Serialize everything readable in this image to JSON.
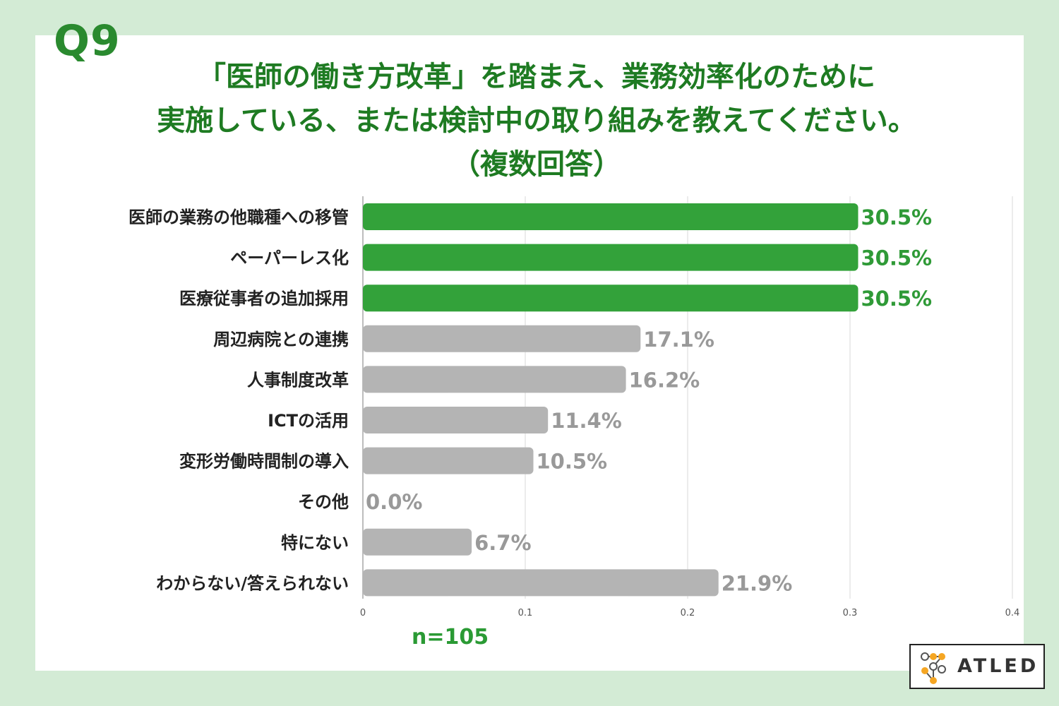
{
  "header": {
    "qnum": "Q9",
    "title_line1": "「医師の働き方改革」を踏まえ、業務効率化のために",
    "title_line2": "実施している、または検討中の取り組みを教えてください。",
    "title_line3": "（複数回答）"
  },
  "footer": {
    "sample_size": "n=105",
    "logo_text": "ATLED"
  },
  "colors": {
    "highlight": "#33a23a",
    "default": "#b4b4b4",
    "highlight_label": "#2f9a37",
    "default_label": "#999999"
  },
  "chart_data": {
    "type": "bar",
    "orientation": "horizontal",
    "categories": [
      "医師の業務の他職種への移管",
      "ペーパーレス化",
      "医療従事者の追加採用",
      "周辺病院との連携",
      "人事制度改革",
      "ICTの活用",
      "変形労働時間制の導入",
      "その他",
      "特にない",
      "わからない/答えられない"
    ],
    "values": [
      0.305,
      0.305,
      0.305,
      0.171,
      0.162,
      0.114,
      0.105,
      0.0,
      0.067,
      0.219
    ],
    "data_labels": [
      "30.5%",
      "30.5%",
      "30.5%",
      "17.1%",
      "16.2%",
      "11.4%",
      "10.5%",
      "0.0%",
      "6.7%",
      "21.9%"
    ],
    "highlighted": [
      true,
      true,
      true,
      false,
      false,
      false,
      false,
      false,
      false,
      false
    ],
    "xlim": [
      0,
      0.4
    ],
    "xticks": [
      "0",
      "0.1",
      "0.2",
      "0.3",
      "0.4"
    ],
    "grid": true
  }
}
